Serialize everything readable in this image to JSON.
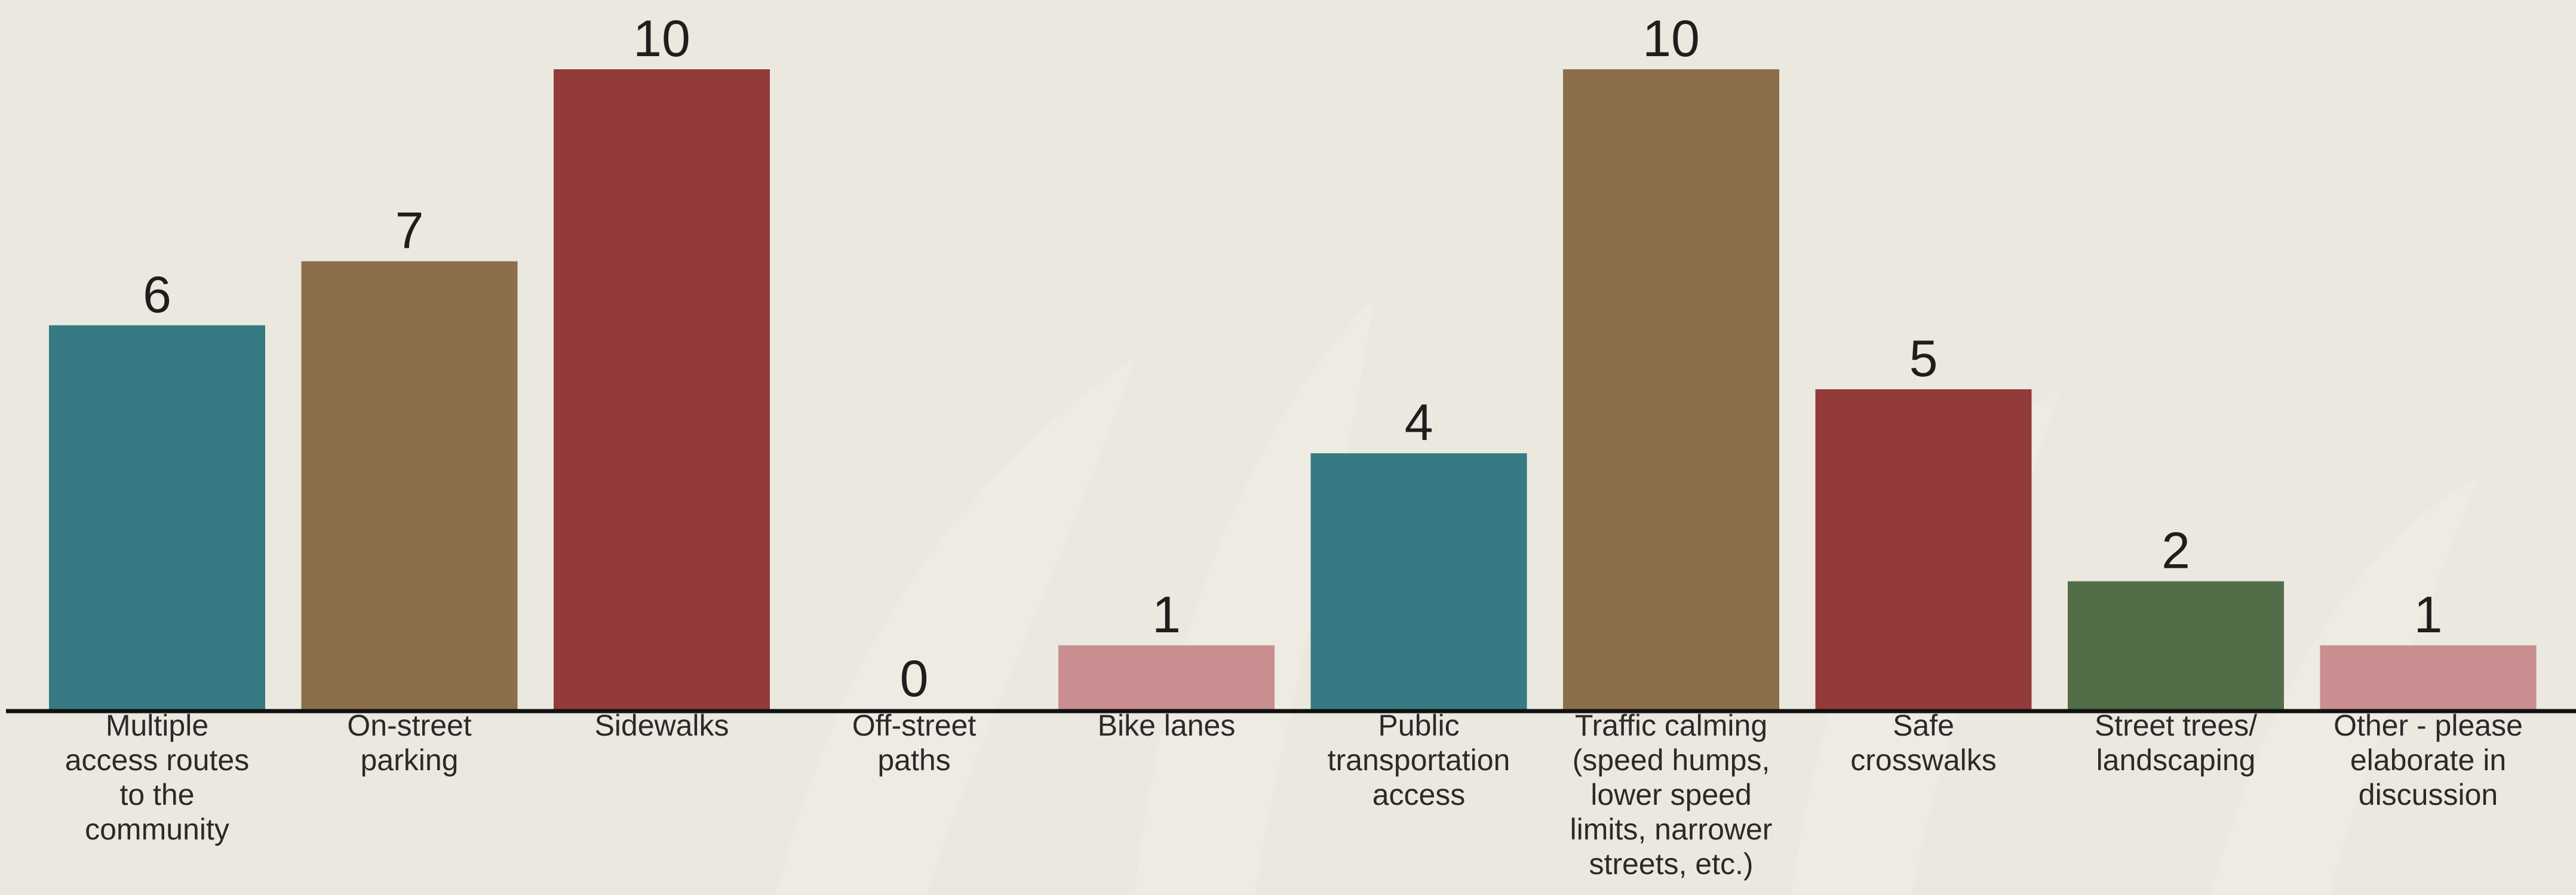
{
  "chart_data": {
    "type": "bar",
    "title": "",
    "xlabel": "",
    "ylabel": "",
    "ylim": [
      0,
      10
    ],
    "grid": false,
    "data_labels": true,
    "categories": [
      "Multiple access routes to the community",
      "On-street parking",
      "Sidewalks",
      "Off-street paths",
      "Bike lanes",
      "Public transportation access",
      "Traffic calming (speed humps, lower speed limits, narrower streets, etc.)",
      "Safe crosswalks",
      "Street trees/ landscaping",
      "Other - please elaborate in discussion"
    ],
    "category_label_lines": [
      [
        "Multiple",
        "access routes",
        "to the",
        "community"
      ],
      [
        "On-street",
        "parking"
      ],
      [
        "Sidewalks"
      ],
      [
        "Off-street",
        "paths"
      ],
      [
        "Bike lanes"
      ],
      [
        "Public",
        "transportation",
        "access"
      ],
      [
        "Traffic calming",
        "(speed humps,",
        "lower speed",
        "limits, narrower",
        "streets, etc.)"
      ],
      [
        "Safe",
        "crosswalks"
      ],
      [
        "Street trees/",
        "landscaping"
      ],
      [
        "Other - please",
        "elaborate in",
        "discussion"
      ]
    ],
    "values": [
      6,
      7,
      10,
      0,
      1,
      4,
      10,
      5,
      2,
      1
    ],
    "bar_colors": [
      "#367a83",
      "#8b6f4a",
      "#933a3a",
      "#8b6f4a",
      "#c98e8f",
      "#367a83",
      "#8b6f4a",
      "#933a3a",
      "#526d47",
      "#c98e8f"
    ]
  },
  "colors": {
    "background": "#ebe8df",
    "axis": "#111111",
    "text": "#222222"
  }
}
